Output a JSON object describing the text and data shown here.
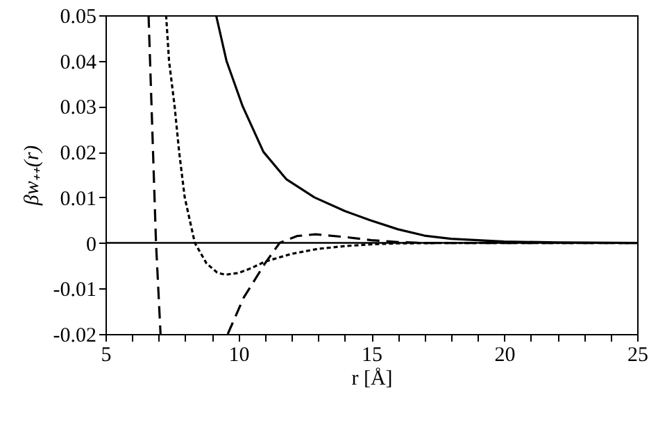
{
  "chart_data": {
    "type": "line",
    "xlabel": "r [Å]",
    "ylabel": "βw₊₊(r)",
    "xlim": [
      5,
      25
    ],
    "ylim": [
      -0.02,
      0.05
    ],
    "xticks": [
      5,
      {
        "value": 6,
        "label": null
      },
      {
        "value": 7,
        "label": null
      },
      {
        "value": 8,
        "label": null
      },
      {
        "value": 9,
        "label": null
      },
      10,
      {
        "value": 11,
        "label": null
      },
      {
        "value": 12,
        "label": null
      },
      {
        "value": 13,
        "label": null
      },
      {
        "value": 14,
        "label": null
      },
      15,
      {
        "value": 16,
        "label": null
      },
      {
        "value": 17,
        "label": null
      },
      {
        "value": 18,
        "label": null
      },
      {
        "value": 19,
        "label": null
      },
      20,
      {
        "value": 21,
        "label": null
      },
      {
        "value": 22,
        "label": null
      },
      {
        "value": 23,
        "label": null
      },
      {
        "value": 24,
        "label": null
      },
      25
    ],
    "yticks": [
      -0.02,
      -0.01,
      0,
      0.01,
      0.02,
      0.03,
      0.04,
      0.05
    ],
    "grid": false,
    "marker": "none",
    "ref_lines": [
      {
        "axis": "y",
        "value": 0,
        "color": "#000000",
        "line_style": "solid"
      }
    ],
    "series": [
      {
        "color": "#000000",
        "line_style": "solid",
        "x": [
          9.16,
          9.55,
          10.16,
          10.94,
          11.8,
          12.86,
          14.0,
          14.95,
          16.0,
          17.0,
          18.0,
          20.0,
          22.0,
          25.0
        ],
        "values": [
          0.05,
          0.04,
          0.03,
          0.02,
          0.014,
          0.01,
          0.007,
          0.005,
          0.003,
          0.0016,
          0.0009,
          0.0003,
          0.0001,
          0.0
        ]
      },
      {
        "color": "#000000",
        "line_style": "dotted",
        "x": [
          7.28,
          7.39,
          7.6,
          7.77,
          7.98,
          8.36,
          8.8,
          9.2,
          9.5,
          10.0,
          10.5,
          11.0,
          12.0,
          13.0,
          14.0,
          15.0,
          16.0,
          18.0,
          25.0
        ],
        "values": [
          0.05,
          0.04,
          0.03,
          0.02,
          0.01,
          0.0,
          -0.0045,
          -0.0065,
          -0.007,
          -0.0066,
          -0.0055,
          -0.0041,
          -0.0024,
          -0.0013,
          -0.0007,
          -0.0003,
          -0.0001,
          0.0,
          0.0
        ]
      },
      {
        "color": "#000000",
        "line_style": "dashed",
        "x": [
          6.62,
          6.9,
          7.07,
          8.3,
          9.6,
          10.2,
          11.0,
          11.55,
          12.2,
          12.9,
          14.0,
          15.0,
          16.0,
          17.0,
          25.0
        ],
        "values": [
          0.05,
          0.0,
          -0.02,
          null,
          -0.02,
          -0.012,
          -0.0045,
          0.0,
          0.0015,
          0.0019,
          0.0013,
          0.0006,
          0.0002,
          0.0,
          0.0
        ]
      }
    ]
  }
}
